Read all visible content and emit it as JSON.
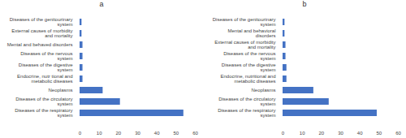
{
  "chart_data": [
    {
      "type": "bar",
      "title": "a",
      "orientation": "horizontal",
      "color": "#4472c4",
      "categories": [
        "Diseases of the genitourinary system",
        "External causes of morbidity and mortality",
        "Mental and behaved disorders",
        "Diseases of the nervous system",
        "Diseases of the digestive system",
        "Endocrine, nutr tional and metabolic diseases",
        "Neoplasms",
        "Diseases of the circulatory system",
        "Diseases of the respiratory system"
      ],
      "values": [
        1,
        1,
        1.5,
        1.5,
        1.5,
        1.5,
        12,
        21,
        54
      ],
      "xlim": [
        0,
        60
      ],
      "xticks": [
        0,
        10,
        20,
        30,
        40,
        50,
        60
      ]
    },
    {
      "type": "bar",
      "title": "b",
      "orientation": "horizontal",
      "color": "#4472c4",
      "categories": [
        "Diseases of the genitourinary system",
        "Mental and behavioral disorders",
        "External causes of morbidity and mortality",
        "Diseases of the nervous system",
        "Diseases of the digestive system",
        "Endocrine, nutritional and metabolic diseases",
        "Neoplasms",
        "Diseases of the circulatory system",
        "Diseases of the respiratory system"
      ],
      "values": [
        1,
        1,
        1.5,
        1.5,
        2,
        2,
        16,
        24,
        49
      ],
      "xlim": [
        0,
        60
      ],
      "xticks": [
        0,
        10,
        20,
        30,
        40,
        50,
        60
      ]
    }
  ]
}
